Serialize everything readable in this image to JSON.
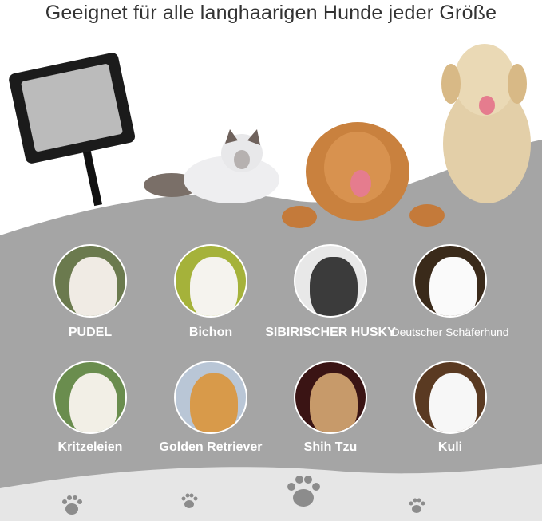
{
  "header": {
    "title": "Geeignet für alle langhaarigen Hunde jeder Größe"
  },
  "colors": {
    "panel": "#a5a5a5",
    "bottom": "#e6e6e6",
    "paw": "#8c8c8c",
    "label": "#ffffff"
  },
  "hero": {
    "items": [
      "slicker-brush",
      "cat",
      "golden-retriever",
      "labrador"
    ]
  },
  "breeds": [
    {
      "label": "PUDEL",
      "icon": "poodle-photo"
    },
    {
      "label": "Bichon",
      "icon": "bichon-photo"
    },
    {
      "label": "SIBIRISCHER HUSKY",
      "icon": "husky-photo"
    },
    {
      "label": "Deutscher Schäferhund",
      "icon": "german-shepherd-photo"
    },
    {
      "label": "Kritzeleien",
      "icon": "white-dog-photo"
    },
    {
      "label": "Golden Retriever",
      "icon": "golden-retriever-photo"
    },
    {
      "label": "Shih Tzu",
      "icon": "shih-tzu-photo"
    },
    {
      "label": "Kuli",
      "icon": "collie-photo"
    }
  ]
}
